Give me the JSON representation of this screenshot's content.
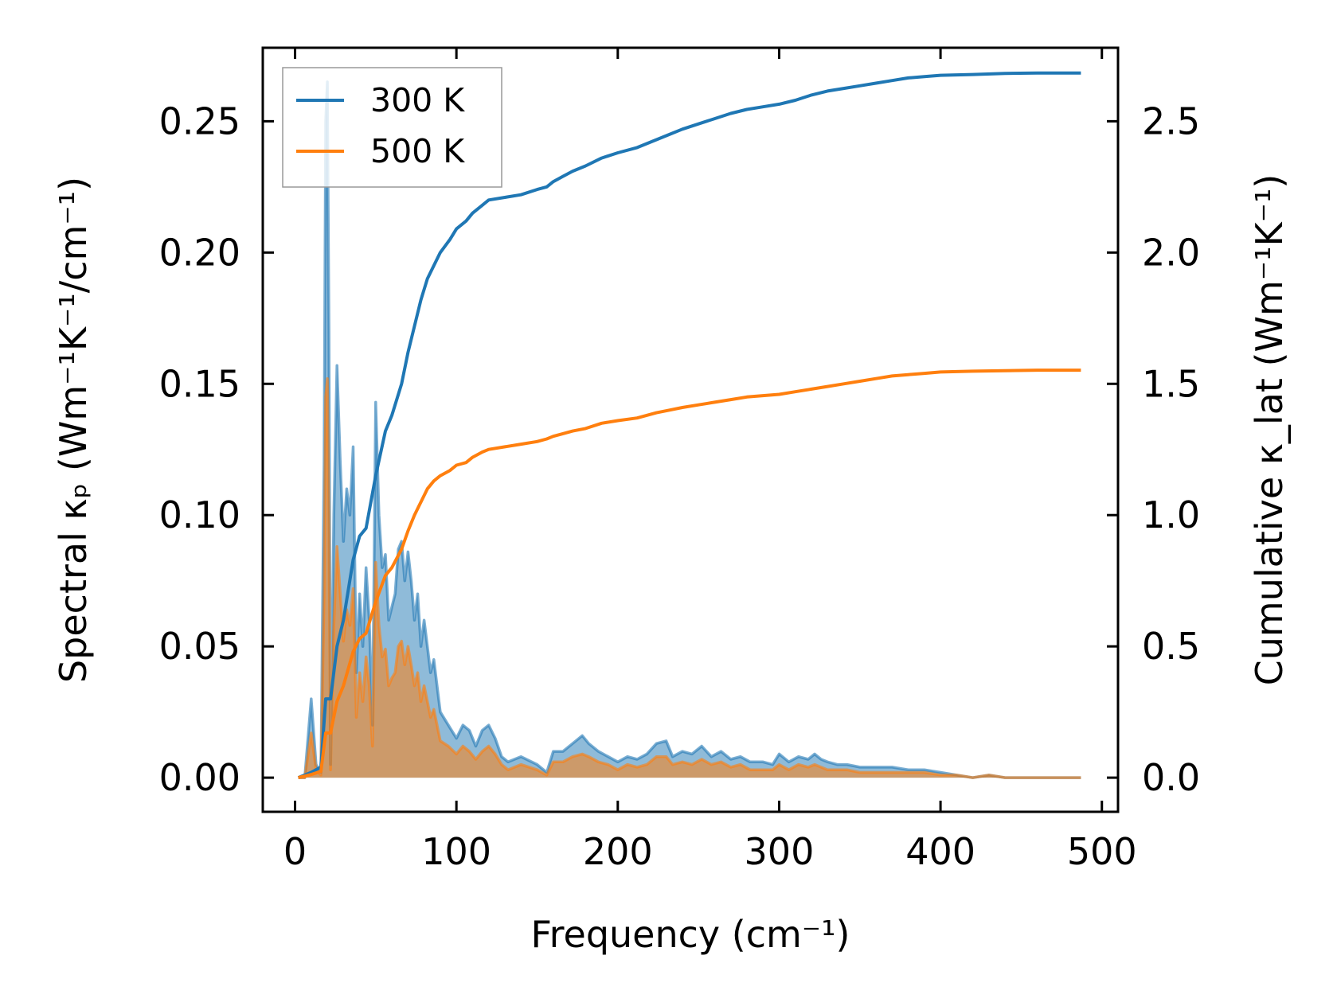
{
  "chart_data": {
    "type": "line",
    "xlabel": "Frequency (cm⁻¹)",
    "ylabel_left": "Spectral κₚ (Wm⁻¹K⁻¹/cm⁻¹)",
    "ylabel_right": "Cumulative κ_lat (Wm⁻¹K⁻¹)",
    "xlim": [
      -20,
      510
    ],
    "ylim_left": [
      -0.013,
      0.278
    ],
    "ylim_right": [
      -0.13,
      2.78
    ],
    "x_ticks": [
      0,
      100,
      200,
      300,
      400,
      500
    ],
    "x_tick_labels": [
      "0",
      "100",
      "200",
      "300",
      "400",
      "500"
    ],
    "y_left_ticks": [
      0.0,
      0.05,
      0.1,
      0.15,
      0.2,
      0.25
    ],
    "y_left_tick_labels": [
      "0.00",
      "0.05",
      "0.10",
      "0.15",
      "0.20",
      "0.25"
    ],
    "y_right_ticks": [
      0.0,
      0.5,
      1.0,
      1.5,
      2.0,
      2.5
    ],
    "y_right_tick_labels": [
      "0.0",
      "0.5",
      "1.0",
      "1.5",
      "2.0",
      "2.5"
    ],
    "legend": {
      "position": "top-left",
      "entries": [
        "300 K",
        "500 K"
      ]
    },
    "series": [
      {
        "name": "300 K",
        "color": "#1f77b4",
        "spectral": {
          "x": [
            2,
            6,
            10,
            13,
            16,
            18,
            19,
            20,
            21,
            22,
            24,
            26,
            28,
            30,
            32,
            34,
            36,
            38,
            40,
            42,
            44,
            46,
            48,
            50,
            52,
            54,
            56,
            58,
            60,
            62,
            64,
            66,
            68,
            70,
            72,
            74,
            76,
            78,
            80,
            82,
            84,
            86,
            90,
            95,
            100,
            104,
            108,
            112,
            116,
            120,
            124,
            128,
            132,
            140,
            150,
            156,
            160,
            166,
            172,
            178,
            182,
            188,
            194,
            200,
            206,
            212,
            218,
            224,
            230,
            234,
            240,
            246,
            252,
            258,
            264,
            270,
            276,
            282,
            290,
            296,
            300,
            306,
            312,
            318,
            322,
            326,
            330,
            336,
            342,
            350,
            360,
            370,
            380,
            390,
            400,
            410,
            420,
            430,
            440,
            450,
            460,
            470,
            480,
            487
          ],
          "y": [
            0.0,
            0.0,
            0.03,
            0.005,
            0.002,
            0.12,
            0.25,
            0.265,
            0.17,
            0.005,
            0.1,
            0.157,
            0.12,
            0.09,
            0.11,
            0.1,
            0.126,
            0.04,
            0.07,
            0.05,
            0.08,
            0.06,
            0.02,
            0.143,
            0.1,
            0.08,
            0.085,
            0.06,
            0.065,
            0.07,
            0.087,
            0.09,
            0.075,
            0.086,
            0.075,
            0.06,
            0.07,
            0.05,
            0.06,
            0.05,
            0.04,
            0.045,
            0.025,
            0.02,
            0.015,
            0.02,
            0.018,
            0.012,
            0.018,
            0.02,
            0.015,
            0.008,
            0.006,
            0.008,
            0.005,
            0.002,
            0.01,
            0.01,
            0.013,
            0.016,
            0.013,
            0.01,
            0.008,
            0.006,
            0.008,
            0.007,
            0.009,
            0.013,
            0.014,
            0.008,
            0.01,
            0.009,
            0.012,
            0.008,
            0.01,
            0.007,
            0.008,
            0.006,
            0.006,
            0.005,
            0.009,
            0.006,
            0.008,
            0.007,
            0.009,
            0.007,
            0.006,
            0.005,
            0.005,
            0.004,
            0.004,
            0.004,
            0.003,
            0.003,
            0.002,
            0.001,
            0.0,
            0.001,
            0.0,
            0.0,
            0.0,
            0.0,
            0.0,
            0.0
          ]
        },
        "cumulative": {
          "x": [
            2,
            10,
            16,
            19,
            22,
            26,
            30,
            36,
            40,
            44,
            50,
            56,
            60,
            66,
            70,
            74,
            78,
            82,
            86,
            90,
            96,
            100,
            106,
            110,
            116,
            120,
            130,
            140,
            150,
            156,
            160,
            166,
            172,
            180,
            190,
            200,
            212,
            224,
            232,
            240,
            250,
            260,
            270,
            280,
            290,
            300,
            310,
            320,
            330,
            340,
            350,
            360,
            370,
            380,
            390,
            400,
            420,
            440,
            460,
            487
          ],
          "y": [
            0.0,
            0.02,
            0.04,
            0.3,
            0.3,
            0.5,
            0.6,
            0.83,
            0.92,
            0.95,
            1.15,
            1.32,
            1.38,
            1.5,
            1.62,
            1.72,
            1.82,
            1.9,
            1.95,
            2.0,
            2.05,
            2.09,
            2.12,
            2.15,
            2.18,
            2.2,
            2.21,
            2.22,
            2.24,
            2.25,
            2.27,
            2.29,
            2.31,
            2.33,
            2.36,
            2.38,
            2.4,
            2.43,
            2.45,
            2.47,
            2.49,
            2.51,
            2.53,
            2.545,
            2.555,
            2.565,
            2.58,
            2.6,
            2.615,
            2.625,
            2.635,
            2.645,
            2.655,
            2.665,
            2.67,
            2.675,
            2.678,
            2.682,
            2.684,
            2.684
          ]
        }
      },
      {
        "name": "500 K",
        "color": "#ff7f0e",
        "spectral": {
          "x": [
            2,
            6,
            10,
            13,
            16,
            18,
            19,
            20,
            21,
            22,
            24,
            26,
            28,
            30,
            32,
            34,
            36,
            38,
            40,
            42,
            44,
            46,
            48,
            50,
            52,
            54,
            56,
            58,
            60,
            62,
            64,
            66,
            68,
            70,
            72,
            74,
            76,
            78,
            80,
            82,
            84,
            86,
            90,
            95,
            100,
            104,
            108,
            112,
            116,
            120,
            124,
            128,
            132,
            140,
            150,
            156,
            160,
            166,
            172,
            178,
            182,
            188,
            194,
            200,
            206,
            212,
            218,
            224,
            230,
            234,
            240,
            246,
            252,
            258,
            264,
            270,
            276,
            282,
            290,
            296,
            300,
            306,
            312,
            318,
            322,
            326,
            330,
            336,
            342,
            350,
            360,
            370,
            380,
            390,
            400,
            410,
            420,
            430,
            440,
            450,
            460,
            470,
            480,
            487
          ],
          "y": [
            0.0,
            0.0,
            0.017,
            0.003,
            0.001,
            0.07,
            0.145,
            0.152,
            0.1,
            0.003,
            0.058,
            0.088,
            0.07,
            0.052,
            0.064,
            0.058,
            0.072,
            0.023,
            0.04,
            0.029,
            0.046,
            0.035,
            0.012,
            0.082,
            0.058,
            0.046,
            0.049,
            0.035,
            0.038,
            0.04,
            0.05,
            0.052,
            0.043,
            0.05,
            0.043,
            0.035,
            0.04,
            0.029,
            0.035,
            0.029,
            0.023,
            0.026,
            0.014,
            0.012,
            0.009,
            0.012,
            0.01,
            0.007,
            0.01,
            0.012,
            0.009,
            0.005,
            0.003,
            0.005,
            0.003,
            0.001,
            0.006,
            0.006,
            0.008,
            0.009,
            0.008,
            0.006,
            0.005,
            0.003,
            0.005,
            0.004,
            0.005,
            0.008,
            0.008,
            0.005,
            0.006,
            0.005,
            0.007,
            0.005,
            0.006,
            0.004,
            0.005,
            0.003,
            0.003,
            0.003,
            0.005,
            0.003,
            0.005,
            0.004,
            0.005,
            0.004,
            0.003,
            0.003,
            0.003,
            0.002,
            0.002,
            0.002,
            0.002,
            0.002,
            0.001,
            0.001,
            0.0,
            0.001,
            0.0,
            0.0,
            0.0,
            0.0,
            0.0,
            0.0
          ]
        },
        "cumulative": {
          "x": [
            2,
            10,
            16,
            19,
            22,
            26,
            30,
            36,
            40,
            44,
            50,
            56,
            60,
            66,
            70,
            74,
            78,
            82,
            86,
            90,
            96,
            100,
            106,
            110,
            116,
            120,
            130,
            140,
            150,
            156,
            160,
            166,
            172,
            180,
            190,
            200,
            212,
            224,
            232,
            240,
            250,
            260,
            270,
            280,
            290,
            300,
            310,
            320,
            330,
            340,
            350,
            360,
            370,
            380,
            390,
            400,
            420,
            440,
            460,
            487
          ],
          "y": [
            0.0,
            0.012,
            0.024,
            0.17,
            0.17,
            0.29,
            0.35,
            0.48,
            0.53,
            0.55,
            0.67,
            0.77,
            0.8,
            0.87,
            0.94,
            1.0,
            1.05,
            1.1,
            1.13,
            1.15,
            1.17,
            1.19,
            1.2,
            1.22,
            1.24,
            1.25,
            1.26,
            1.27,
            1.28,
            1.29,
            1.3,
            1.31,
            1.32,
            1.33,
            1.35,
            1.36,
            1.37,
            1.39,
            1.4,
            1.41,
            1.42,
            1.43,
            1.44,
            1.45,
            1.455,
            1.46,
            1.47,
            1.48,
            1.49,
            1.5,
            1.51,
            1.52,
            1.53,
            1.535,
            1.54,
            1.545,
            1.548,
            1.55,
            1.552,
            1.552
          ]
        }
      }
    ]
  }
}
